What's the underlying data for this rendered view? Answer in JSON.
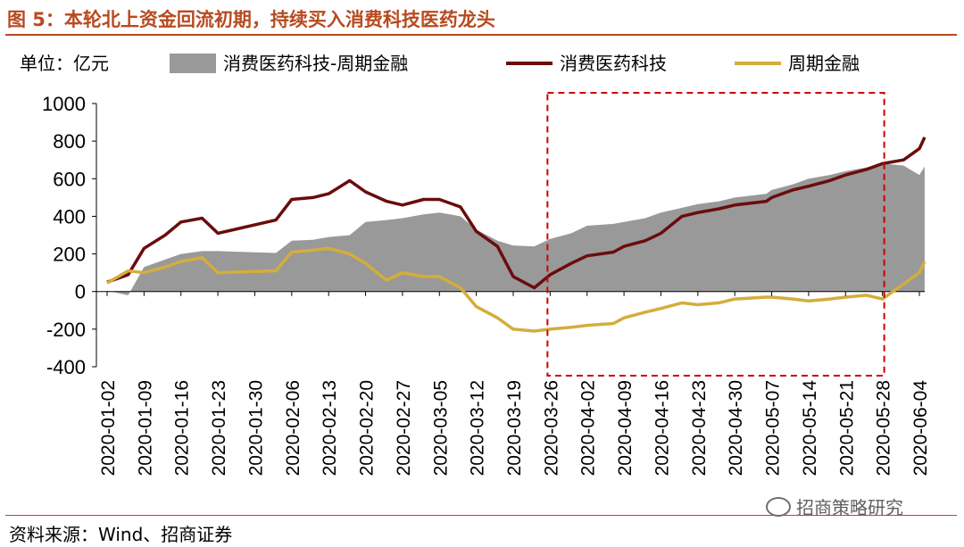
{
  "title": "图 5：本轮北上资金回流初期，持续买入消费科技医药龙头",
  "unit_label": "单位：亿元",
  "source": "资料来源：Wind、招商证券",
  "watermark": "招商策略研究",
  "colors": {
    "area": "#999999",
    "line1": "#6b0c0c",
    "line2": "#d4ad3c",
    "box": "#cc0000",
    "title": "#b84a1f"
  },
  "chart_data": {
    "type": "line",
    "ylim": [
      -400,
      1000
    ],
    "yticks": [
      -400,
      -200,
      0,
      200,
      400,
      600,
      800,
      1000
    ],
    "x_ticks": [
      "2020-01-02",
      "2020-01-09",
      "2020-01-16",
      "2020-01-23",
      "2020-01-30",
      "2020-02-06",
      "2020-02-13",
      "2020-02-20",
      "2020-02-27",
      "2020-03-05",
      "2020-03-12",
      "2020-03-19",
      "2020-03-26",
      "2020-04-02",
      "2020-04-09",
      "2020-04-16",
      "2020-04-23",
      "2020-04-30",
      "2020-05-07",
      "2020-05-14",
      "2020-05-21",
      "2020-05-28",
      "2020-06-04"
    ],
    "x": [
      "2020-01-02",
      "2020-01-06",
      "2020-01-09",
      "2020-01-13",
      "2020-01-16",
      "2020-01-20",
      "2020-01-23",
      "2020-02-03",
      "2020-02-06",
      "2020-02-10",
      "2020-02-13",
      "2020-02-17",
      "2020-02-20",
      "2020-02-24",
      "2020-02-27",
      "2020-03-02",
      "2020-03-05",
      "2020-03-09",
      "2020-03-12",
      "2020-03-16",
      "2020-03-19",
      "2020-03-23",
      "2020-03-26",
      "2020-03-30",
      "2020-04-02",
      "2020-04-07",
      "2020-04-09",
      "2020-04-13",
      "2020-04-16",
      "2020-04-20",
      "2020-04-23",
      "2020-04-27",
      "2020-04-30",
      "2020-05-06",
      "2020-05-07",
      "2020-05-11",
      "2020-05-14",
      "2020-05-18",
      "2020-05-21",
      "2020-05-25",
      "2020-05-28",
      "2020-06-01",
      "2020-06-04",
      "2020-06-05"
    ],
    "series": [
      {
        "name": "消费医药科技-周期金融",
        "type": "area",
        "values": [
          5,
          -20,
          130,
          170,
          200,
          215,
          215,
          205,
          270,
          275,
          290,
          300,
          370,
          380,
          390,
          410,
          420,
          400,
          330,
          270,
          245,
          240,
          280,
          310,
          350,
          360,
          370,
          390,
          420,
          445,
          465,
          480,
          500,
          520,
          540,
          570,
          600,
          620,
          640,
          660,
          680,
          670,
          620,
          665
        ]
      },
      {
        "name": "消费医药科技",
        "type": "line",
        "values": [
          50,
          90,
          230,
          300,
          370,
          390,
          310,
          380,
          490,
          500,
          520,
          590,
          530,
          480,
          460,
          490,
          490,
          450,
          320,
          240,
          80,
          20,
          90,
          150,
          190,
          210,
          240,
          270,
          310,
          400,
          420,
          440,
          460,
          480,
          500,
          540,
          560,
          590,
          620,
          650,
          680,
          700,
          760,
          820
        ]
      },
      {
        "name": "周期金融",
        "type": "line",
        "values": [
          45,
          110,
          100,
          130,
          160,
          180,
          100,
          110,
          210,
          220,
          230,
          200,
          150,
          60,
          100,
          80,
          80,
          20,
          -80,
          -140,
          -200,
          -210,
          -200,
          -190,
          -180,
          -170,
          -140,
          -110,
          -90,
          -60,
          -70,
          -60,
          -40,
          -30,
          -30,
          -40,
          -50,
          -40,
          -30,
          -20,
          -40,
          40,
          100,
          160
        ]
      }
    ],
    "legend_position": "top",
    "highlight_range": [
      "2020-03-26",
      "2020-05-28"
    ]
  }
}
